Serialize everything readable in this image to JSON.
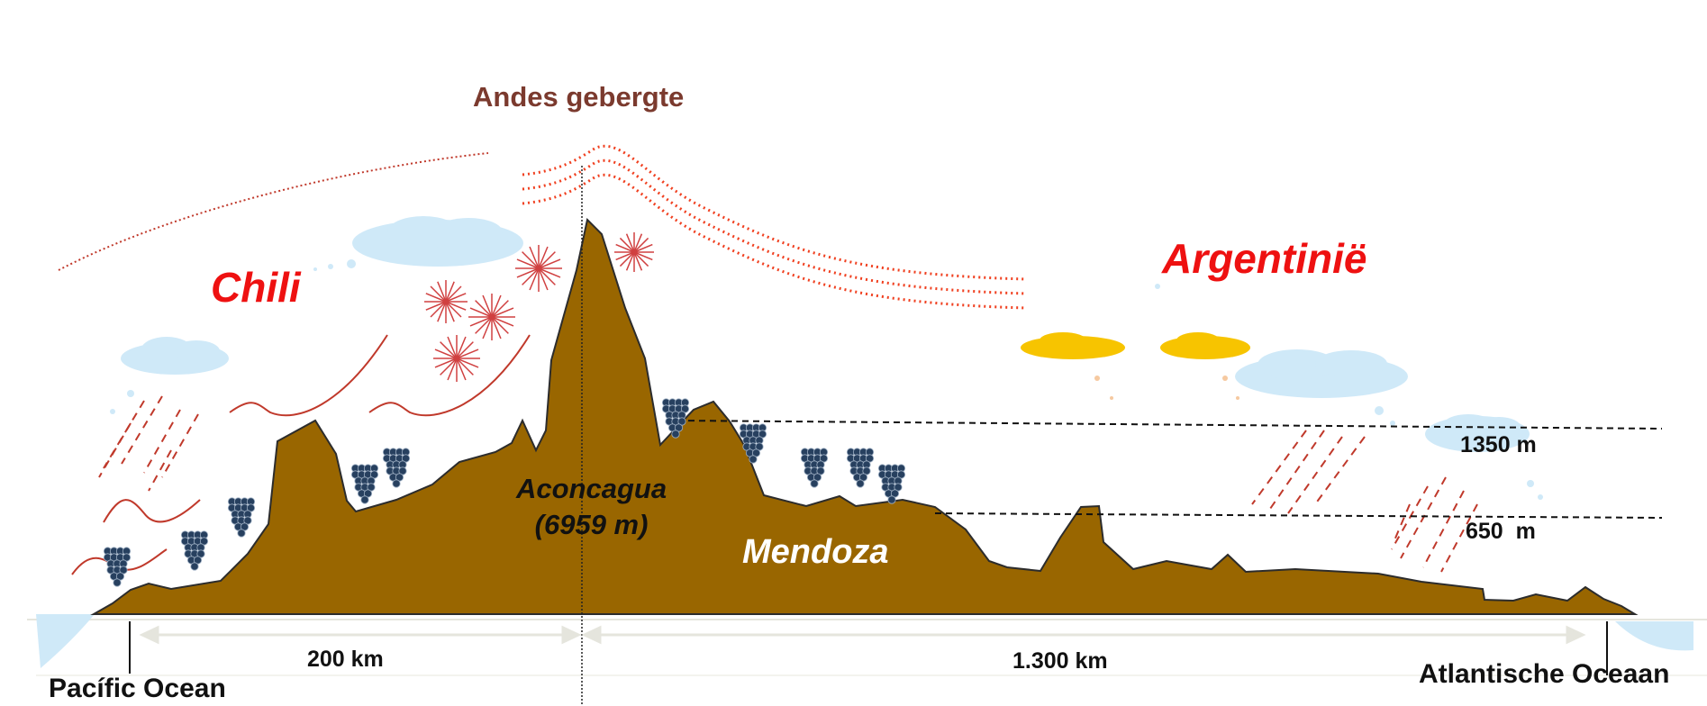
{
  "title": "Andes gebergte",
  "regions": {
    "west": "Chili",
    "east": "Argentinië",
    "province": "Mendoza"
  },
  "peak": {
    "name": "Aconcagua",
    "height": "(6959 m)"
  },
  "altitudes": {
    "upper": "1350 m",
    "lower": "650  m"
  },
  "distances": {
    "west": "200 km",
    "east": "1.300 km"
  },
  "oceans": {
    "west": "Pacífic Ocean",
    "east": "Atlantische Oceaan"
  },
  "colors": {
    "terrain": "#996600",
    "cloud": "#cfe9f8",
    "sun_cloud": "#f7c400",
    "rain": "#c0392b",
    "wind": "#f04020",
    "title": "#7b3a2e",
    "country": "#ee1111",
    "grape": "#27405f",
    "water": "#cfe9f8"
  },
  "icons": [
    "cloud-icon",
    "rain-icon",
    "sunburst-icon",
    "grape-cluster-icon",
    "wind-stream-icon"
  ]
}
